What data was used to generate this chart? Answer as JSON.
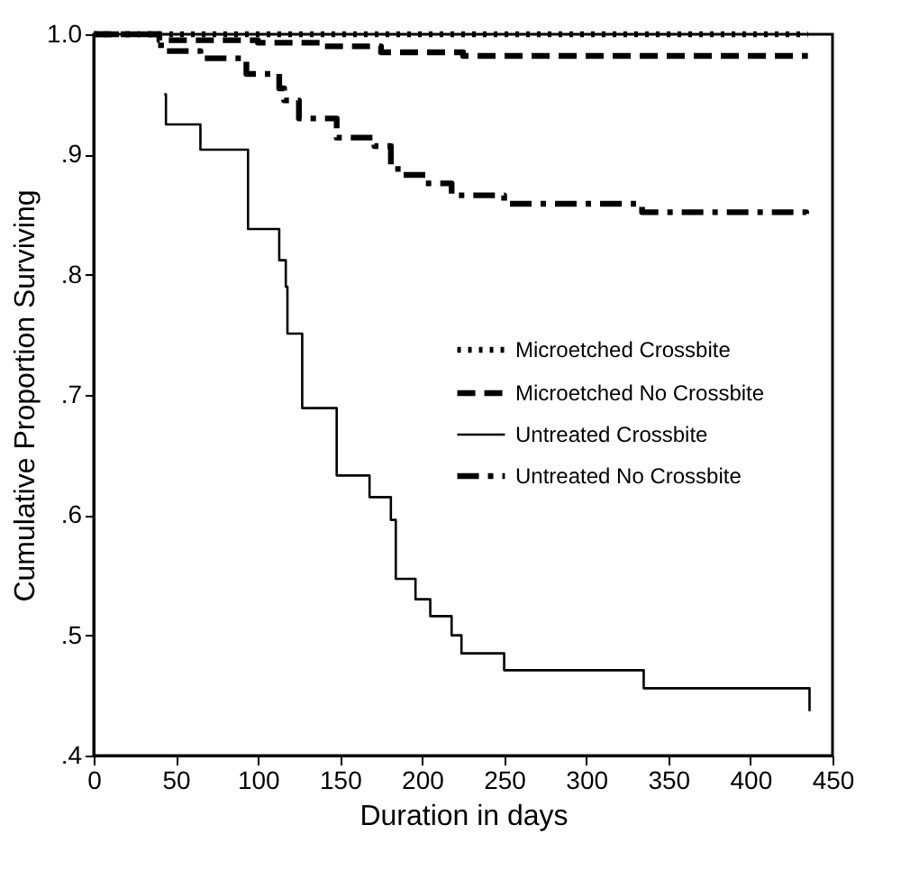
{
  "chart_data": {
    "type": "step",
    "xlabel": "Duration in days",
    "ylabel": "Cumulative Proportion Surviving",
    "xlim": [
      0,
      450
    ],
    "xticks": [
      0,
      50,
      100,
      150,
      200,
      250,
      300,
      350,
      400,
      450
    ],
    "ylim": [
      0.4,
      1.0
    ],
    "yticks": [
      {
        "value": 0.4,
        "label": ".4"
      },
      {
        "value": 0.5,
        "label": ".5"
      },
      {
        "value": 0.6,
        "label": ".6"
      },
      {
        "value": 0.7,
        "label": ".7"
      },
      {
        "value": 0.8,
        "label": ".8"
      },
      {
        "value": 0.9,
        "label": ".9"
      },
      {
        "value": 1.0,
        "label": "1.0"
      }
    ],
    "grid": false,
    "legend": "right",
    "marker": "none",
    "series": [
      {
        "name": "Microetched Crossbite",
        "color": "#000000",
        "line_style": "dotted",
        "x": [
          0,
          435
        ],
        "values": [
          1.0,
          1.0
        ]
      },
      {
        "name": "Microetched No Crossbite",
        "color": "#000000",
        "line_style": "dashed",
        "x": [
          0,
          40,
          100,
          140,
          175,
          225,
          435
        ],
        "values": [
          1.0,
          0.995,
          0.993,
          0.99,
          0.985,
          0.982,
          0.982
        ]
      },
      {
        "name": "Untreated Crossbite",
        "color": "#000000",
        "line_style": "solid",
        "x": [
          43,
          44,
          65,
          94,
          113,
          117,
          118,
          127,
          148,
          168,
          181,
          184,
          196,
          205,
          218,
          224,
          250,
          335,
          436
        ],
        "values": [
          0.95,
          0.925,
          0.904,
          0.838,
          0.812,
          0.79,
          0.751,
          0.689,
          0.633,
          0.615,
          0.596,
          0.547,
          0.53,
          0.516,
          0.5,
          0.485,
          0.471,
          0.456,
          0.437
        ]
      },
      {
        "name": "Untreated No Crossbite",
        "color": "#000000",
        "line_style": "dashdot",
        "x": [
          0,
          41,
          65,
          93,
          113,
          116,
          125,
          148,
          171,
          181,
          188,
          202,
          218,
          250,
          334,
          434
        ],
        "values": [
          1.0,
          0.986,
          0.98,
          0.967,
          0.955,
          0.945,
          0.93,
          0.914,
          0.907,
          0.888,
          0.883,
          0.876,
          0.866,
          0.859,
          0.852,
          0.849
        ]
      }
    ]
  }
}
